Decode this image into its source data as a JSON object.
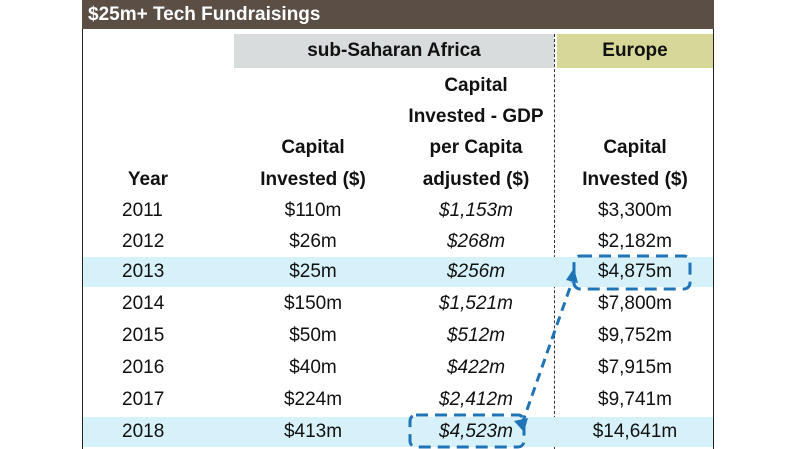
{
  "table": {
    "title": "$25m+ Tech Fundraisings",
    "groups": {
      "ssa": "sub-Saharan Africa",
      "europe": "Europe"
    },
    "headers": {
      "year": "Year",
      "ssa_capital": [
        "Capital",
        "Invested ($)"
      ],
      "ssa_gdp": [
        "Capital",
        "Invested - GDP",
        "per Capita",
        "adjusted ($)"
      ],
      "eu_capital": [
        "Capital",
        "Invested ($)"
      ]
    },
    "rows": [
      {
        "year": "2011",
        "ssa_capital": "$110m",
        "ssa_gdp": "$1,153m",
        "eu_capital": "$3,300m",
        "highlight": false
      },
      {
        "year": "2012",
        "ssa_capital": "$26m",
        "ssa_gdp": "$268m",
        "eu_capital": "$2,182m",
        "highlight": false
      },
      {
        "year": "2013",
        "ssa_capital": "$25m",
        "ssa_gdp": "$256m",
        "eu_capital": "$4,875m",
        "highlight": true
      },
      {
        "year": "2014",
        "ssa_capital": "$150m",
        "ssa_gdp": "$1,521m",
        "eu_capital": "$7,800m",
        "highlight": false
      },
      {
        "year": "2015",
        "ssa_capital": "$50m",
        "ssa_gdp": "$512m",
        "eu_capital": "$9,752m",
        "highlight": false
      },
      {
        "year": "2016",
        "ssa_capital": "$40m",
        "ssa_gdp": "$422m",
        "eu_capital": "$7,915m",
        "highlight": false
      },
      {
        "year": "2017",
        "ssa_capital": "$224m",
        "ssa_gdp": "$2,412m",
        "eu_capital": "$9,741m",
        "highlight": false
      },
      {
        "year": "2018",
        "ssa_capital": "$413m",
        "ssa_gdp": "$4,523m",
        "eu_capital": "$14,641m",
        "highlight": true
      }
    ]
  },
  "colors": {
    "title_bar": "#5a4e45",
    "ssa_header": "#d9dcdc",
    "europe_header": "#d7d898",
    "row_highlight": "#d7f1fa",
    "callout": "#1f73b7"
  },
  "chart_data": {
    "type": "table",
    "title": "$25m+ Tech Fundraisings",
    "columns": [
      "Year",
      "sub-Saharan Africa Capital Invested ($)",
      "sub-Saharan Africa Capital Invested - GDP per Capita adjusted ($)",
      "Europe Capital Invested ($)"
    ],
    "rows": [
      [
        "2011",
        "$110m",
        "$1,153m",
        "$3,300m"
      ],
      [
        "2012",
        "$26m",
        "$268m",
        "$2,182m"
      ],
      [
        "2013",
        "$25m",
        "$256m",
        "$4,875m"
      ],
      [
        "2014",
        "$150m",
        "$1,521m",
        "$7,800m"
      ],
      [
        "2015",
        "$50m",
        "$512m",
        "$9,752m"
      ],
      [
        "2016",
        "$40m",
        "$422m",
        "$7,915m"
      ],
      [
        "2017",
        "$224m",
        "$2,412m",
        "$9,741m"
      ],
      [
        "2018",
        "$413m",
        "$4,523m",
        "$14,641m"
      ]
    ],
    "annotations": [
      "dashed box around 2018 GDP-adjusted $4,523m",
      "dashed box around 2013 Europe $4,875m",
      "dashed arrow from 2018 GDP-adjusted value to 2013 Europe value"
    ]
  }
}
